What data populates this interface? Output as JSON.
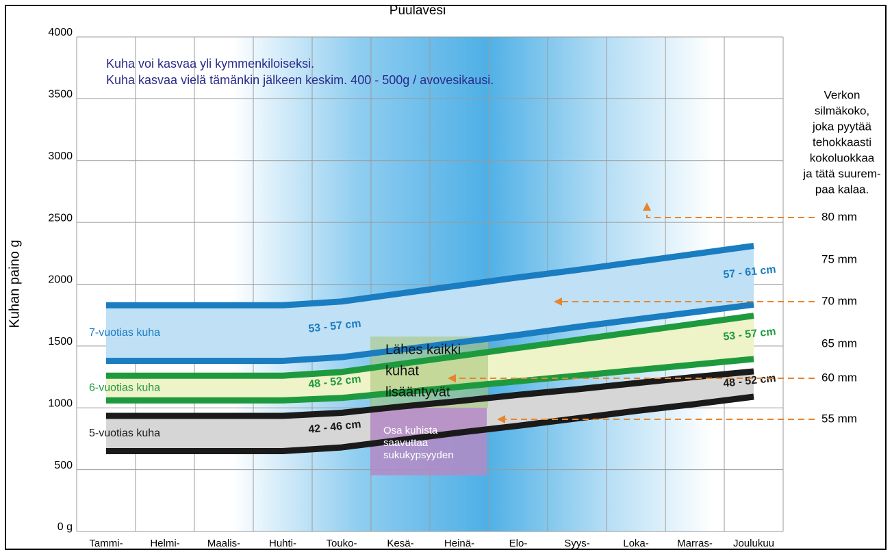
{
  "chart_data": {
    "type": "band-line",
    "title": "Puulavesi",
    "y_label": "Kuhan paino g",
    "categories": [
      "Tammi-",
      "Helmi-",
      "Maalis-",
      "Huhti-",
      "Touko-",
      "Kesä-",
      "Heinä-",
      "Elo-",
      "Syys-",
      "Loka-",
      "Marras-",
      "Joulukuu"
    ],
    "ylim": [
      0,
      4000
    ],
    "yticks": [
      {
        "value": 0,
        "label": "0 g"
      },
      500,
      1000,
      1500,
      2000,
      2500,
      3000,
      3500,
      4000
    ],
    "grid": true,
    "bands": [
      {
        "label": "5-vuotias kuha",
        "color": "#1a1a1a",
        "fill": "#d6d6d6",
        "lower": [
          650,
          650,
          650,
          650,
          680,
          740,
          800,
          855,
          915,
          975,
          1030,
          1090
        ],
        "upper": [
          935,
          935,
          935,
          935,
          960,
          1010,
          1055,
          1105,
          1150,
          1200,
          1250,
          1295
        ],
        "size_labels": [
          "42 - 46 cm",
          "48 - 52 cm"
        ]
      },
      {
        "label": "6-vuotias kuha",
        "color": "#1e9a3e",
        "fill": "#eef3c8",
        "lower": [
          1060,
          1060,
          1060,
          1060,
          1080,
          1125,
          1170,
          1215,
          1260,
          1305,
          1350,
          1395
        ],
        "upper": [
          1260,
          1260,
          1260,
          1260,
          1290,
          1355,
          1420,
          1485,
          1550,
          1615,
          1680,
          1745
        ],
        "size_labels": [
          "48 - 52 cm",
          "53 - 57 cm"
        ]
      },
      {
        "label": "7-vuotias kuha",
        "color": "#1a7cc1",
        "fill": "#bfe0f5",
        "lower": [
          1380,
          1380,
          1380,
          1380,
          1410,
          1470,
          1530,
          1590,
          1655,
          1715,
          1775,
          1835
        ],
        "upper": [
          1830,
          1830,
          1830,
          1830,
          1860,
          1925,
          1990,
          2055,
          2115,
          2180,
          2245,
          2310
        ],
        "size_labels": [
          "53 - 57 cm",
          "57 - 61 cm"
        ]
      }
    ],
    "annotations": [
      "Kuha voi kasvaa yli kymmenkiloiseksi.",
      "Kuha kasvaa vielä tämänkin jälkeen keskim. 400 - 500g / avovesikausi."
    ],
    "boxes": [
      {
        "lines": [
          "Lähes kaikki",
          "kuhat",
          "lisääntyvät"
        ]
      },
      {
        "lines": [
          "Osa kuhista",
          "saavuttaa",
          "sukukypsyyden"
        ]
      }
    ],
    "mesh_note": [
      "Verkon",
      "silmäkoko,",
      "joka pyytää",
      "tehokkaasti",
      "kokoluokkaa",
      "ja tätä suurem-",
      "paa kalaa."
    ],
    "mesh_sizes": [
      "80 mm",
      "75 mm",
      "70 mm",
      "65 mm",
      "60 mm",
      "55 mm"
    ]
  }
}
